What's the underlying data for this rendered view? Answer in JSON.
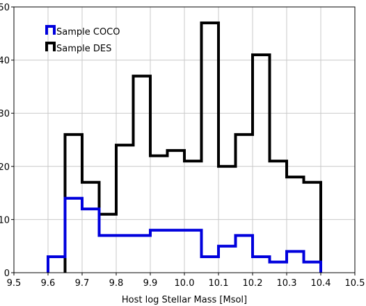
{
  "chart_data": {
    "type": "histogram",
    "title": "",
    "xlabel": "Host log Stellar Mass [Msol]",
    "ylabel": "",
    "xlim": [
      9.5,
      10.5
    ],
    "ylim": [
      0,
      50
    ],
    "xticks": [
      "9.5",
      "9.6",
      "9.7",
      "9.8",
      "9.9",
      "10.0",
      "10.1",
      "10.2",
      "10.3",
      "10.4",
      "10.5"
    ],
    "yticks": [
      "0",
      "10",
      "20",
      "30",
      "40",
      "50"
    ],
    "grid": true,
    "legend": "top-left",
    "bin_edges": [
      9.6,
      9.65,
      9.7,
      9.75,
      9.8,
      9.85,
      9.9,
      9.95,
      10.0,
      10.05,
      10.1,
      10.15,
      10.2,
      10.25,
      10.3,
      10.35,
      10.4
    ],
    "series": [
      {
        "name": "Sample COCO",
        "color": "#0000dd",
        "values": [
          3,
          14,
          12,
          7,
          7,
          7,
          8,
          8,
          8,
          3,
          5,
          7,
          3,
          2,
          4,
          2
        ]
      },
      {
        "name": "Sample DES",
        "color": "#000000",
        "values": [
          0,
          26,
          17,
          11,
          24,
          37,
          22,
          23,
          21,
          47,
          20,
          26,
          41,
          21,
          18,
          17
        ]
      }
    ]
  }
}
